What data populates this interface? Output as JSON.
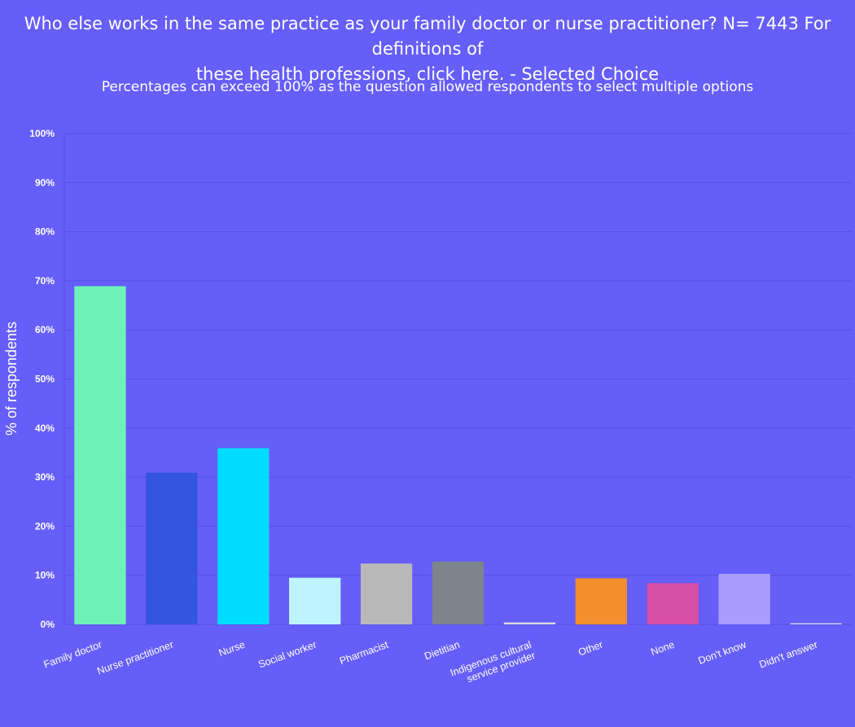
{
  "chart_data": {
    "type": "bar",
    "title": "Who else works in the same practice as your family doctor or nurse practitioner? N= 7443 For definitions of\nthese health professions, click here. - Selected Choice",
    "subtitle": "Percentages can exceed 100% as the question allowed respondents to select multiple options",
    "xlabel": "",
    "ylabel": "% of respondents",
    "ylim": [
      0,
      100
    ],
    "yticks": [
      "0%",
      "10%",
      "20%",
      "30%",
      "40%",
      "50%",
      "60%",
      "70%",
      "80%",
      "90%",
      "100%"
    ],
    "grid": true,
    "categories": [
      "Family doctor",
      "Nurse practitioner",
      "Nurse",
      "Social worker",
      "Pharmacist",
      "Dietitian",
      "Indigenous cultural service provider",
      "Other",
      "None",
      "Don't know",
      "Didn't answer"
    ],
    "category_lines": [
      [
        "Family doctor"
      ],
      [
        "Nurse practitioner"
      ],
      [
        "Nurse"
      ],
      [
        "Social worker"
      ],
      [
        "Pharmacist"
      ],
      [
        "Dietitian"
      ],
      [
        "Indigenous cultural",
        "service provider"
      ],
      [
        "Other"
      ],
      [
        "None"
      ],
      [
        "Don't know"
      ],
      [
        "Didn't answer"
      ]
    ],
    "values": [
      68.9,
      30.9,
      35.9,
      9.5,
      12.4,
      12.8,
      0.4,
      9.4,
      8.4,
      10.3,
      0.2
    ],
    "colors": [
      "#6ef2b8",
      "#3355e0",
      "#00dcff",
      "#bdf4ff",
      "#b9b9b9",
      "#7d848b",
      "#d8d8e0",
      "#f28f2c",
      "#d64fa6",
      "#a89cff",
      "#cfcfe8"
    ]
  }
}
